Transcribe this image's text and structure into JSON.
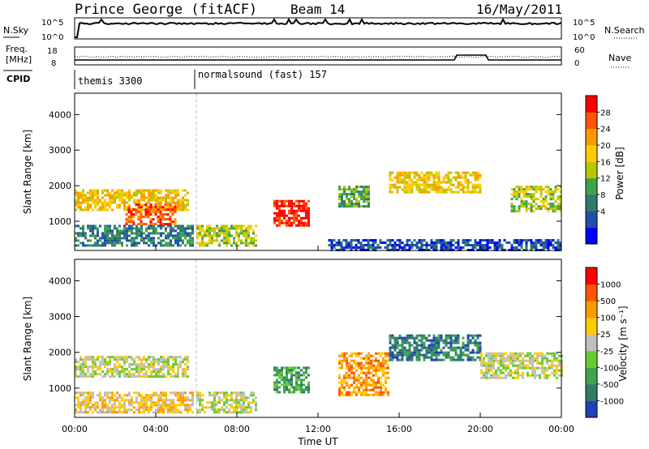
{
  "header": {
    "station": "Prince George (fitACF)",
    "beam": "Beam 14",
    "date": "16/May/2011"
  },
  "top_panels": {
    "nsky_label": "N.Sky",
    "nsky_ticks": [
      "10^5",
      "10^0"
    ],
    "nsearch_label": "N.Search",
    "nsearch_ticks": [
      "10^5",
      "10^0"
    ],
    "freq_label_1": "Freq.",
    "freq_label_2": "[MHz]",
    "freq_ticks": [
      "18",
      "8"
    ],
    "nave_label": "Nave",
    "nave_ticks": [
      "60",
      "0"
    ],
    "cpid_label": "CPID",
    "cpid_modes": [
      {
        "name": "themis 3300",
        "start_hour": 0
      },
      {
        "name": "normalsound (fast) 157",
        "start_hour": 6
      }
    ]
  },
  "chart_data": [
    {
      "type": "heatmap",
      "name": "power-panel",
      "ylabel": "Slant Range [km]",
      "xlabel": "",
      "x_range_hours": [
        0,
        24
      ],
      "ylim": [
        180,
        4600
      ],
      "yticks": [
        "4000",
        "3000",
        "2000",
        "1000"
      ],
      "colorbar": {
        "label": "Power [dB]",
        "ticks": [
          "28",
          "24",
          "20",
          "16",
          "12",
          "8",
          "4"
        ],
        "colors": [
          "#0000ff",
          "#2050a8",
          "#2f7a6a",
          "#3fa34d",
          "#b8c800",
          "#ffcc00",
          "#ff9900",
          "#ff5500",
          "#ff0000"
        ]
      },
      "regions": [
        {
          "h0": 0.0,
          "h1": 5.6,
          "r0": 1300,
          "r1": 1900,
          "level": 5
        },
        {
          "h0": 0.0,
          "h1": 5.8,
          "r0": 300,
          "r1": 900,
          "level": 2
        },
        {
          "h0": 2.5,
          "h1": 5.0,
          "r0": 900,
          "r1": 1500,
          "level": 7
        },
        {
          "h0": 6.0,
          "h1": 9.0,
          "r0": 350,
          "r1": 900,
          "level": 4
        },
        {
          "h0": 9.8,
          "h1": 11.6,
          "r0": 900,
          "r1": 1600,
          "level": 8
        },
        {
          "h0": 13.0,
          "h1": 14.5,
          "r0": 1400,
          "r1": 2000,
          "level": 3
        },
        {
          "h0": 15.5,
          "h1": 20.0,
          "r0": 1800,
          "r1": 2400,
          "level": 5
        },
        {
          "h0": 12.5,
          "h1": 24.0,
          "r0": 200,
          "r1": 500,
          "level": 1
        },
        {
          "h0": 21.5,
          "h1": 24.0,
          "r0": 1300,
          "r1": 2000,
          "level": 4
        }
      ]
    },
    {
      "type": "heatmap",
      "name": "velocity-panel",
      "ylabel": "Slant Range [km]",
      "xlabel": "Time UT",
      "x_range_hours": [
        0,
        24
      ],
      "ylim": [
        180,
        4600
      ],
      "yticks": [
        "4000",
        "3000",
        "2000",
        "1000"
      ],
      "xticks": [
        "00:00",
        "04:00",
        "08:00",
        "12:00",
        "16:00",
        "20:00",
        "00:00"
      ],
      "colorbar": {
        "label": "Velocity [m s⁻¹]",
        "ticks": [
          "1000",
          "500",
          "100",
          "25",
          "-25",
          "-100",
          "-500",
          "-1000"
        ],
        "colors": [
          "#2040c0",
          "#2f7a6a",
          "#3fa34d",
          "#66cc33",
          "#bfbfbf",
          "#ffcc00",
          "#ff9900",
          "#ff5500",
          "#ff0000"
        ]
      },
      "regions": [
        {
          "h0": 0.0,
          "h1": 5.6,
          "r0": 1300,
          "r1": 1900,
          "level": 4
        },
        {
          "h0": 0.0,
          "h1": 5.8,
          "r0": 300,
          "r1": 900,
          "level": 5
        },
        {
          "h0": 6.0,
          "h1": 9.0,
          "r0": 350,
          "r1": 900,
          "level": 4
        },
        {
          "h0": 9.8,
          "h1": 11.6,
          "r0": 900,
          "r1": 1600,
          "level": 2
        },
        {
          "h0": 13.0,
          "h1": 15.5,
          "r0": 800,
          "r1": 2000,
          "level": 6
        },
        {
          "h0": 15.5,
          "h1": 20.0,
          "r0": 1800,
          "r1": 2500,
          "level": 1
        },
        {
          "h0": 20.0,
          "h1": 24.0,
          "r0": 1300,
          "r1": 2000,
          "level": 4
        }
      ]
    }
  ]
}
